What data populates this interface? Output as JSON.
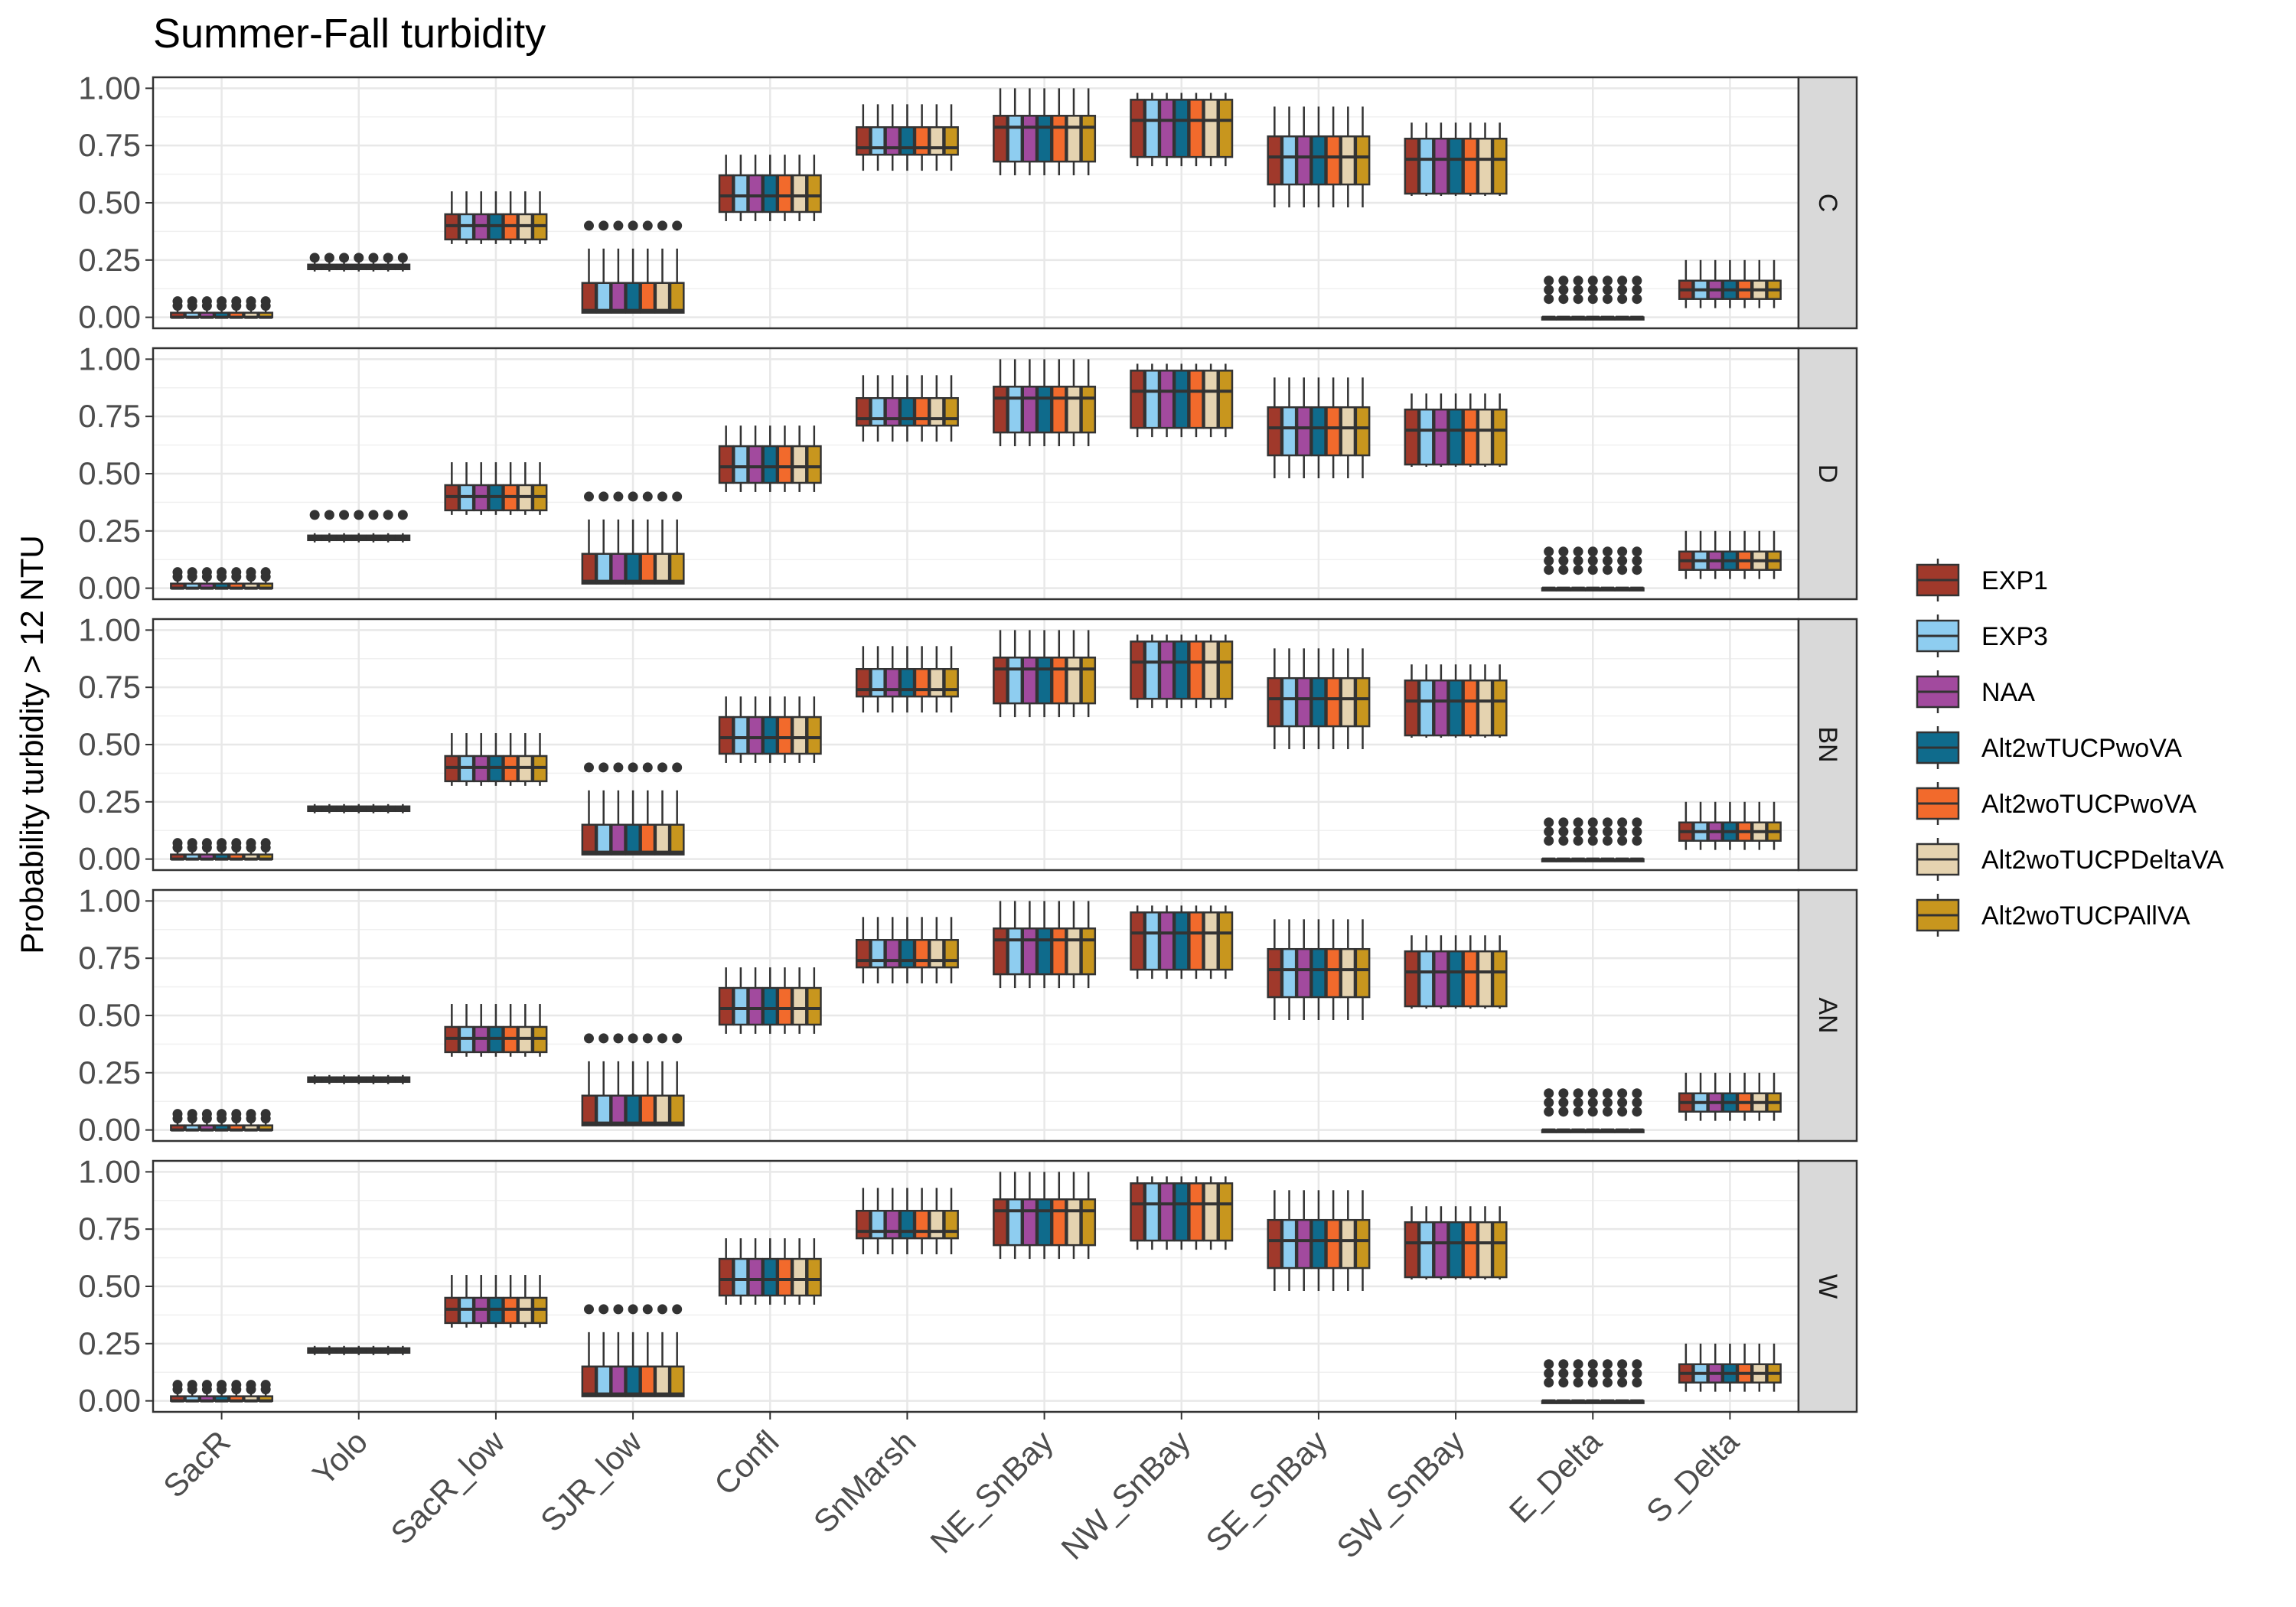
{
  "chart_data": {
    "type": "box",
    "title": "Summer-Fall turbidity",
    "xlabel": "",
    "ylabel": "Probability turbidity > 12 NTU",
    "ylim": [
      0,
      1
    ],
    "y_ticks": [
      "0.00",
      "0.25",
      "0.50",
      "0.75",
      "1.00"
    ],
    "grid": true,
    "legend_position": "right",
    "categories": [
      "SacR",
      "Yolo",
      "SacR_low",
      "SJR_low",
      "Confl",
      "SnMarsh",
      "NE_SnBay",
      "NW_SnBay",
      "SE_SnBay",
      "SW_SnBay",
      "E_Delta",
      "S_Delta"
    ],
    "facets": [
      "C",
      "D",
      "BN",
      "AN",
      "W"
    ],
    "series": [
      {
        "name": "EXP1",
        "color": "#A0392B"
      },
      {
        "name": "EXP3",
        "color": "#8ECDF0"
      },
      {
        "name": "NAA",
        "color": "#A24A9E"
      },
      {
        "name": "Alt2wTUCPwoVA",
        "color": "#0F6B8C"
      },
      {
        "name": "Alt2woTUCPwoVA",
        "color": "#F26A2C"
      },
      {
        "name": "Alt2woTUCPDeltaVA",
        "color": "#E5D3B0"
      },
      {
        "name": "Alt2woTUCPAllVA",
        "color": "#C8961E"
      }
    ],
    "box_stats": [
      {
        "category": "SacR",
        "whisker_low": 0.0,
        "q1": 0.0,
        "median": 0.0,
        "q3": 0.02,
        "whisker_high": 0.03,
        "outliers": [
          0.05,
          0.07
        ]
      },
      {
        "category": "Yolo",
        "whisker_low": 0.2,
        "q1": 0.21,
        "median": 0.22,
        "q3": 0.23,
        "whisker_high": 0.24,
        "outliers": []
      },
      {
        "category": "SacR_low",
        "whisker_low": 0.32,
        "q1": 0.34,
        "median": 0.4,
        "q3": 0.45,
        "whisker_high": 0.55,
        "outliers": []
      },
      {
        "category": "SJR_low",
        "whisker_low": 0.02,
        "q1": 0.02,
        "median": 0.03,
        "q3": 0.15,
        "whisker_high": 0.3,
        "outliers": [
          0.4
        ]
      },
      {
        "category": "Confl",
        "whisker_low": 0.42,
        "q1": 0.46,
        "median": 0.53,
        "q3": 0.62,
        "whisker_high": 0.71,
        "outliers": []
      },
      {
        "category": "SnMarsh",
        "whisker_low": 0.64,
        "q1": 0.71,
        "median": 0.74,
        "q3": 0.83,
        "whisker_high": 0.93,
        "outliers": []
      },
      {
        "category": "NE_SnBay",
        "whisker_low": 0.62,
        "q1": 0.68,
        "median": 0.83,
        "q3": 0.88,
        "whisker_high": 1.0,
        "outliers": []
      },
      {
        "category": "NW_SnBay",
        "whisker_low": 0.66,
        "q1": 0.7,
        "median": 0.86,
        "q3": 0.95,
        "whisker_high": 0.98,
        "outliers": []
      },
      {
        "category": "SE_SnBay",
        "whisker_low": 0.48,
        "q1": 0.58,
        "median": 0.7,
        "q3": 0.79,
        "whisker_high": 0.92,
        "outliers": []
      },
      {
        "category": "SW_SnBay",
        "whisker_low": 0.53,
        "q1": 0.54,
        "median": 0.69,
        "q3": 0.78,
        "whisker_high": 0.85,
        "outliers": []
      },
      {
        "category": "E_Delta",
        "whisker_low": 0.0,
        "q1": 0.0,
        "median": 0.0,
        "q3": 0.0,
        "whisker_high": 0.0,
        "outliers": [
          0.08,
          0.12,
          0.16
        ]
      },
      {
        "category": "S_Delta",
        "whisker_low": 0.04,
        "q1": 0.08,
        "median": 0.12,
        "q3": 0.16,
        "whisker_high": 0.25,
        "outliers": []
      }
    ],
    "facet_overrides": {
      "C": {
        "Yolo": {
          "outliers": [
            0.26
          ]
        }
      },
      "D": {
        "Yolo": {
          "outliers": [
            0.32
          ]
        }
      }
    }
  }
}
